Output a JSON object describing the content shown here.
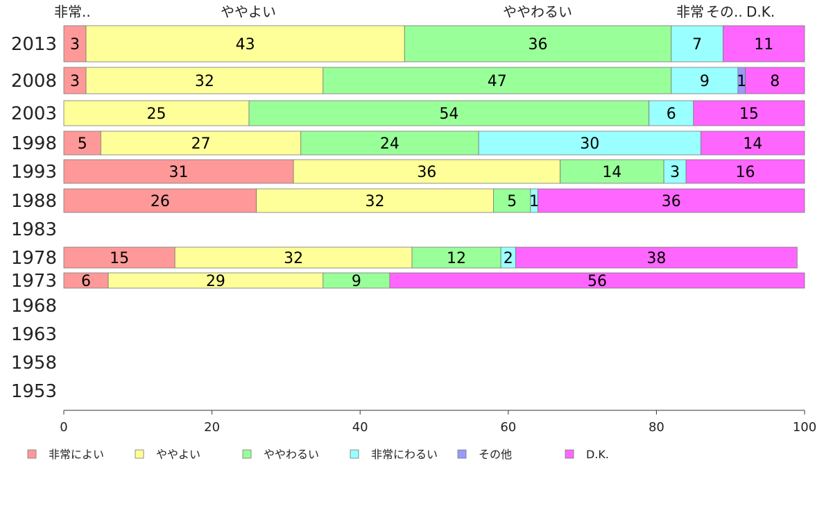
{
  "chart_data": {
    "type": "bar",
    "orientation": "horizontal",
    "stacked": true,
    "categories": [
      "2013",
      "2008",
      "2003",
      "1998",
      "1993",
      "1988",
      "1983",
      "1978",
      "1973",
      "1968",
      "1963",
      "1958",
      "1953"
    ],
    "series": [
      {
        "name": "非常によい",
        "color": "#ff9999",
        "values": [
          3,
          3,
          null,
          5,
          31,
          26,
          null,
          15,
          6,
          null,
          null,
          null,
          null
        ]
      },
      {
        "name": "ややよい",
        "color": "#ffff99",
        "values": [
          43,
          32,
          25,
          27,
          36,
          32,
          null,
          32,
          29,
          null,
          null,
          null,
          null
        ]
      },
      {
        "name": "ややわるい",
        "color": "#99ff99",
        "values": [
          36,
          47,
          54,
          24,
          14,
          5,
          null,
          12,
          9,
          null,
          null,
          null,
          null
        ]
      },
      {
        "name": "非常にわるい",
        "color": "#99ffff",
        "values": [
          7,
          9,
          6,
          30,
          3,
          1,
          null,
          2,
          null,
          null,
          null,
          null,
          null
        ]
      },
      {
        "name": "その他",
        "color": "#9999ff",
        "values": [
          null,
          1,
          null,
          null,
          null,
          null,
          null,
          null,
          null,
          null,
          null,
          null,
          null
        ]
      },
      {
        "name": "D.K.",
        "color": "#ff66ff",
        "values": [
          11,
          8,
          15,
          14,
          16,
          36,
          null,
          38,
          56,
          null,
          null,
          null,
          null
        ]
      }
    ],
    "top_labels": [
      "非常..",
      "ややよい",
      "ややわるい",
      "非常",
      "その..",
      "D.K."
    ],
    "xlim": [
      0,
      100
    ],
    "xticks": [
      0,
      20,
      40,
      60,
      80,
      100
    ],
    "grid": false,
    "legend_position": "bottom"
  }
}
